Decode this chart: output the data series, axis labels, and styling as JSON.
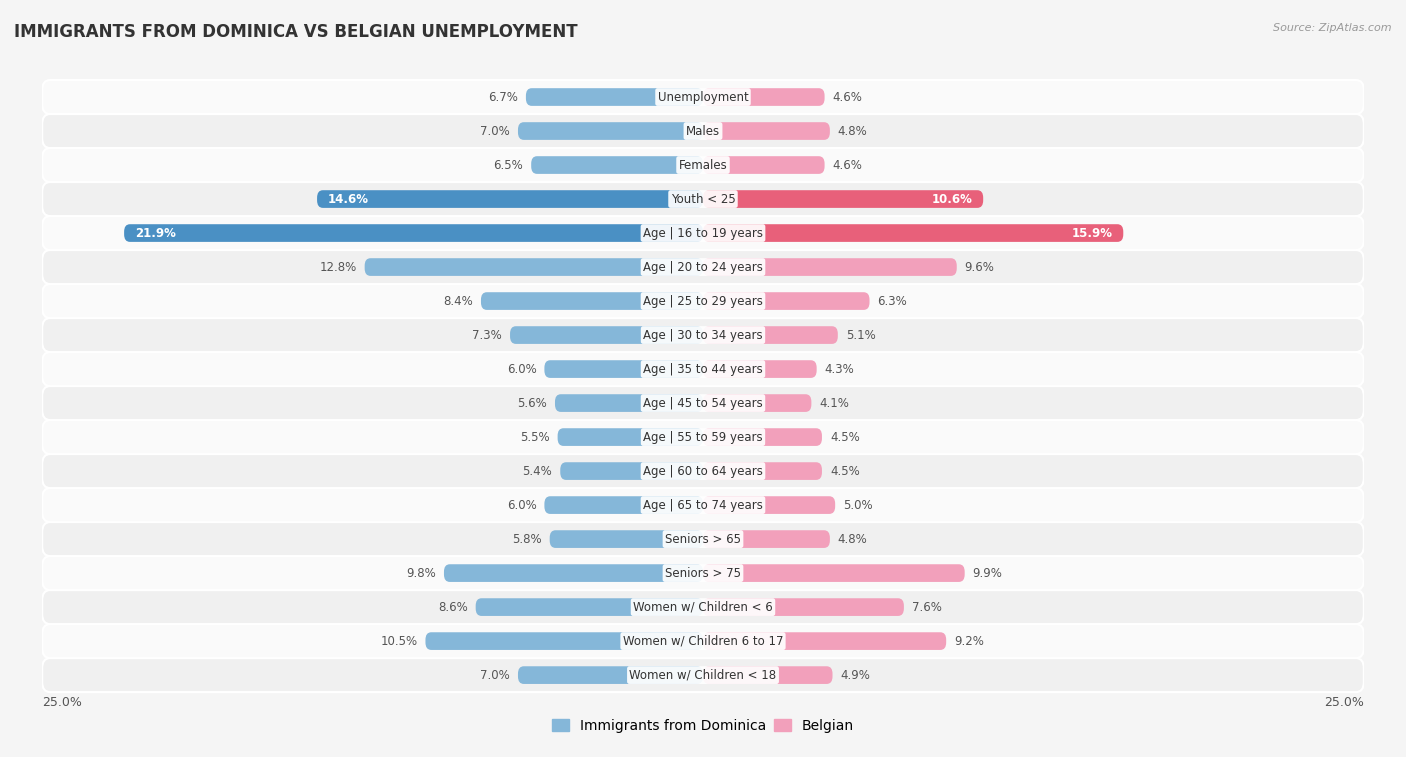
{
  "title": "IMMIGRANTS FROM DOMINICA VS BELGIAN UNEMPLOYMENT",
  "source": "Source: ZipAtlas.com",
  "categories": [
    "Unemployment",
    "Males",
    "Females",
    "Youth < 25",
    "Age | 16 to 19 years",
    "Age | 20 to 24 years",
    "Age | 25 to 29 years",
    "Age | 30 to 34 years",
    "Age | 35 to 44 years",
    "Age | 45 to 54 years",
    "Age | 55 to 59 years",
    "Age | 60 to 64 years",
    "Age | 65 to 74 years",
    "Seniors > 65",
    "Seniors > 75",
    "Women w/ Children < 6",
    "Women w/ Children 6 to 17",
    "Women w/ Children < 18"
  ],
  "dominica_values": [
    6.7,
    7.0,
    6.5,
    14.6,
    21.9,
    12.8,
    8.4,
    7.3,
    6.0,
    5.6,
    5.5,
    5.4,
    6.0,
    5.8,
    9.8,
    8.6,
    10.5,
    7.0
  ],
  "belgian_values": [
    4.6,
    4.8,
    4.6,
    10.6,
    15.9,
    9.6,
    6.3,
    5.1,
    4.3,
    4.1,
    4.5,
    4.5,
    5.0,
    4.8,
    9.9,
    7.6,
    9.2,
    4.9
  ],
  "dominica_color": "#85b7d9",
  "belgian_color": "#f2a0bb",
  "dominica_highlight_color": "#4a90c4",
  "belgian_highlight_color": "#e8607a",
  "xlim": 25.0,
  "bar_height": 0.52,
  "bg_color": "#f5f5f5",
  "row_color_odd": "#f0f0f0",
  "row_color_even": "#fafafa",
  "label_fontsize": 8.5,
  "title_fontsize": 12,
  "value_fontsize": 8.5,
  "legend_fontsize": 10,
  "highlight_threshold_dom": 14.0,
  "highlight_threshold_bel": 10.0
}
